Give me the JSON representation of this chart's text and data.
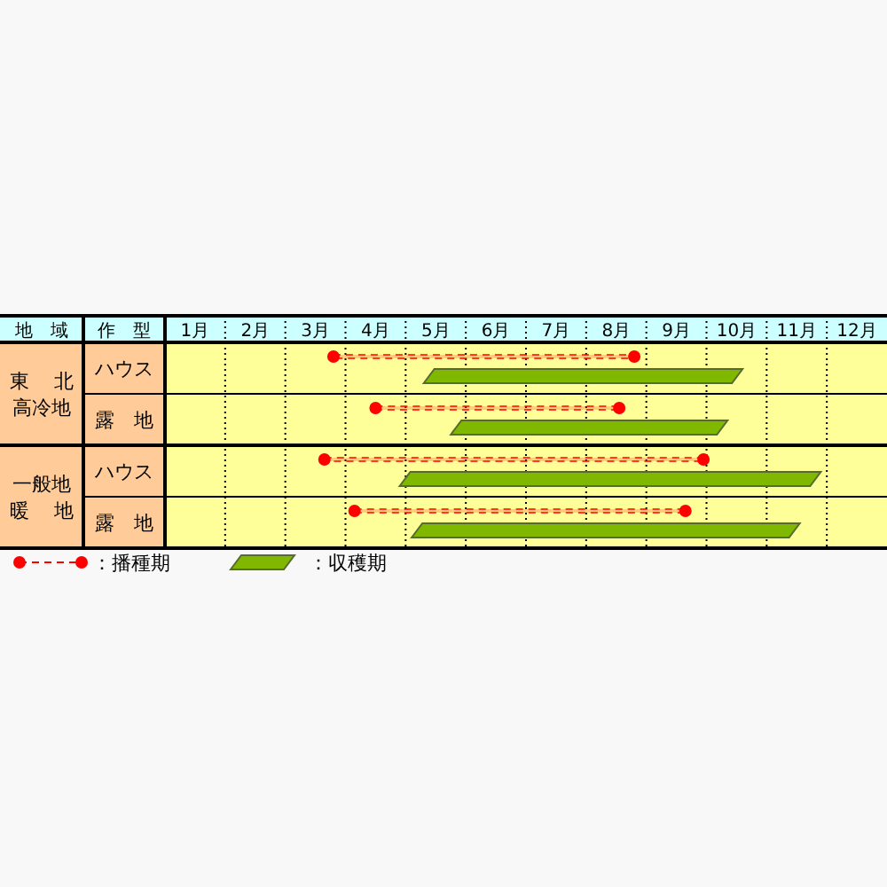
{
  "chart_data": {
    "type": "bar",
    "orientation": "horizontal",
    "xlabel": "地　域",
    "ylabel": "作　型",
    "categories": [
      "ハウス",
      "露　地",
      "ハウス",
      "露　地"
    ],
    "annotations": [
      "東北",
      "高冷地",
      "一般地",
      "暖地"
    ],
    "xlim": [
      1,
      13
    ],
    "xticks": [
      {
        "value": 1.5,
        "label": "1月"
      },
      {
        "value": 2,
        "label": null
      },
      {
        "value": 2.5,
        "label": "2月"
      },
      {
        "value": 3,
        "label": null
      },
      {
        "value": 3.5,
        "label": "3月"
      },
      {
        "value": 4,
        "label": null
      },
      {
        "value": 4.5,
        "label": "4月"
      },
      {
        "value": 5,
        "label": null
      },
      {
        "value": 5.5,
        "label": "5月"
      },
      {
        "value": 6,
        "label": null
      },
      {
        "value": 6.5,
        "label": "6月"
      },
      {
        "value": 7,
        "label": null
      },
      {
        "value": 7.5,
        "label": "7月"
      },
      {
        "value": 8,
        "label": null
      },
      {
        "value": 8.5,
        "label": "8月"
      },
      {
        "value": 9,
        "label": null
      },
      {
        "value": 9.5,
        "label": "9月"
      },
      {
        "value": 10,
        "label": null
      },
      {
        "value": 10.5,
        "label": "10月"
      },
      {
        "value": 11,
        "label": null
      },
      {
        "value": 11.5,
        "label": "11月"
      },
      {
        "value": 12,
        "label": null
      },
      {
        "value": 12.5,
        "label": "12月"
      }
    ],
    "grid": "x",
    "legend": "bottom left",
    "bands": [
      {
        "axis": "x",
        "from": 1,
        "to": 13,
        "color": "#ffff99"
      }
    ],
    "series": [
      {
        "name": "：播種期",
        "color": "#ff0000",
        "marker": "circle",
        "line_style": "dashed",
        "base": [
          3.8,
          4.5,
          3.65,
          4.15
        ],
        "values": [
          5.0,
          4.05,
          6.3,
          5.5
        ]
      },
      {
        "name": "：収穫期",
        "color": "#80b800",
        "base": [
          5.3,
          5.75,
          4.9,
          5.1
        ],
        "values": [
          5.3,
          4.6,
          7.0,
          6.45
        ]
      }
    ]
  }
}
